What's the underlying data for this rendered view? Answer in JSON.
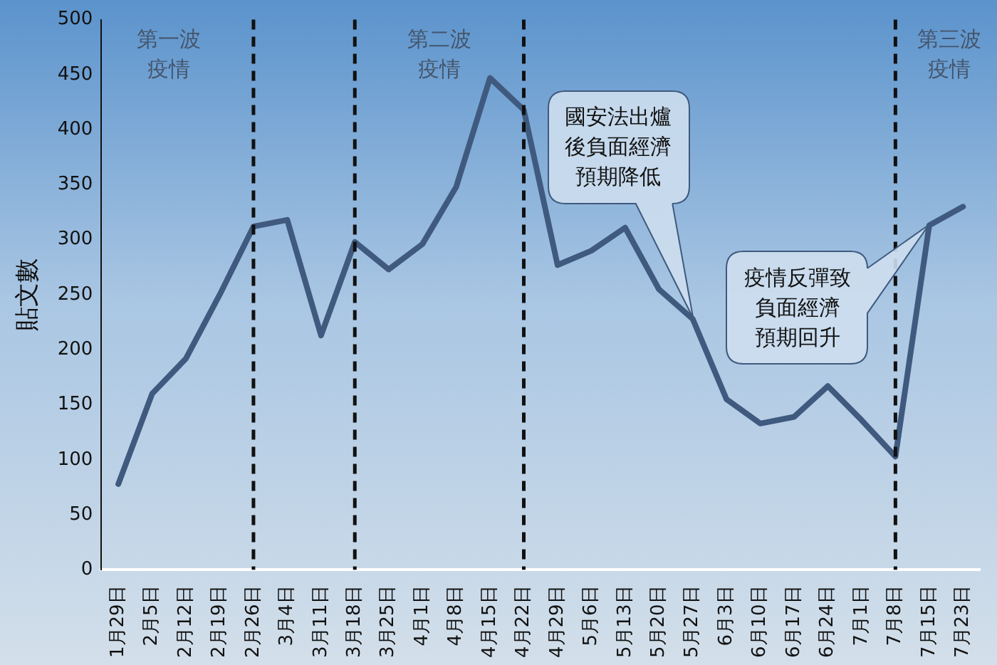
{
  "chart_data": {
    "type": "line",
    "ylabel": "貼文數",
    "categories": [
      "1月29日",
      "2月5日",
      "2月12日",
      "2月19日",
      "2月26日",
      "3月4日",
      "3月11日",
      "3月18日",
      "3月25日",
      "4月1日",
      "4月8日",
      "4月15日",
      "4月22日",
      "4月29日",
      "5月6日",
      "5月13日",
      "5月20日",
      "5月27日",
      "6月3日",
      "6月10日",
      "6月17日",
      "6月24日",
      "7月1日",
      "7月8日",
      "7月15日",
      "7月23日"
    ],
    "series": [
      {
        "color": "#3f5a7e",
        "values": [
          78,
          160,
          192,
          250,
          312,
          318,
          213,
          298,
          273,
          296,
          348,
          447,
          418,
          277,
          290,
          311,
          255,
          228,
          155,
          133,
          139,
          167,
          136,
          103,
          313,
          330
        ]
      }
    ],
    "ylim": [
      0,
      500
    ],
    "yticks": [
      0,
      50,
      100,
      150,
      200,
      250,
      300,
      350,
      400,
      450,
      500
    ],
    "grid": false,
    "legend": false,
    "marker": "none",
    "line_style": "solid",
    "ref_lines": [
      {
        "axis": "x",
        "value": "2月26日",
        "color": "#111111",
        "line_style": "dashed"
      },
      {
        "axis": "x",
        "value": "3月18日",
        "color": "#111111",
        "line_style": "dashed"
      },
      {
        "axis": "x",
        "value": "4月22日",
        "color": "#111111",
        "line_style": "dashed"
      },
      {
        "axis": "x",
        "value": "7月8日",
        "color": "#111111",
        "line_style": "dashed"
      }
    ],
    "annotations": [
      "第一波疫情",
      "第二波疫情",
      "第三波疫情",
      "國安法出爐後負面經濟預期降低",
      "疫情反彈致負面經濟預期回升"
    ]
  }
}
